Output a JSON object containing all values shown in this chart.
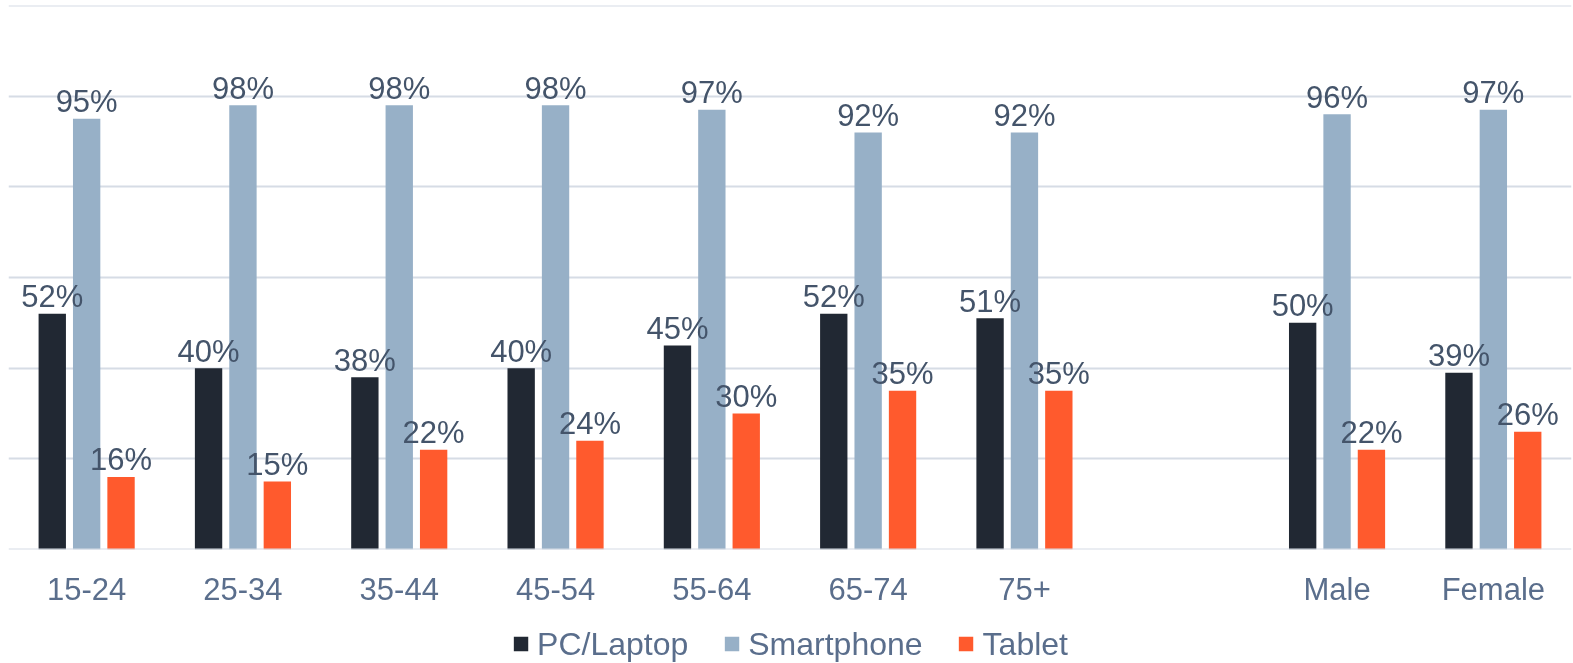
{
  "chart_data": {
    "type": "bar",
    "categories": [
      "15-24",
      "25-34",
      "35-44",
      "45-54",
      "55-64",
      "65-74",
      "75+",
      null,
      "Male",
      "Female"
    ],
    "series": [
      {
        "name": "PC/Laptop",
        "color": "#212833",
        "values": [
          52,
          40,
          38,
          40,
          45,
          52,
          51,
          null,
          50,
          39
        ],
        "value_labels": [
          "52%",
          "40%",
          "38%",
          "40%",
          "45%",
          "52%",
          "51%",
          null,
          "50%",
          "39%"
        ]
      },
      {
        "name": "Smartphone",
        "color": "#97b0c7",
        "values": [
          95,
          98,
          98,
          98,
          97,
          92,
          92,
          null,
          96,
          97
        ],
        "value_labels": [
          "95%",
          "98%",
          "98%",
          "98%",
          "97%",
          "92%",
          "92%",
          null,
          "96%",
          "97%"
        ]
      },
      {
        "name": "Tablet",
        "color": "#ff5a2d",
        "values": [
          16,
          15,
          22,
          24,
          30,
          35,
          35,
          null,
          22,
          26
        ],
        "value_labels": [
          "16%",
          "15%",
          "22%",
          "24%",
          "30%",
          "35%",
          "35%",
          null,
          "22%",
          "26%"
        ]
      }
    ],
    "ylim": [
      0,
      120
    ],
    "yticks": [
      {
        "value": 20,
        "label": null
      },
      {
        "value": 40,
        "label": null
      },
      {
        "value": 60,
        "label": null
      },
      {
        "value": 80,
        "label": null
      },
      {
        "value": 100,
        "label": null
      }
    ],
    "grid": "y",
    "legend": "bottom",
    "tick_labels": "x"
  }
}
